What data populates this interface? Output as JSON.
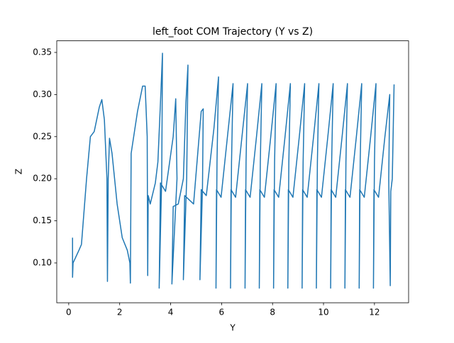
{
  "chart_data": {
    "type": "line",
    "title": "left_foot COM Trajectory (Y vs Z)",
    "x_label": "Y",
    "y_label": "Z",
    "xlim": [
      -0.47,
      13.34
    ],
    "ylim": [
      0.0527,
      0.3638
    ],
    "xticks": [
      0,
      2,
      4,
      6,
      8,
      10,
      12
    ],
    "yticks": [
      {
        "value": 0.1,
        "label": "0.10"
      },
      0.15,
      {
        "value": 0.2,
        "label": "0.20"
      },
      0.25,
      {
        "value": 0.3,
        "label": "0.30"
      },
      0.35
    ],
    "grid": false,
    "series": [
      {
        "color": "#1f77b4",
        "x": [
          0.15,
          0.15,
          0.17,
          0.4,
          0.5,
          0.7,
          0.85,
          1.0,
          1.2,
          1.3,
          1.4,
          1.5,
          1.52,
          1.55,
          1.6,
          1.7,
          1.9,
          2.1,
          2.3,
          2.4,
          2.42,
          2.45,
          2.7,
          2.9,
          3.0,
          3.08,
          3.1,
          3.12,
          3.2,
          3.4,
          3.5,
          3.6,
          3.68,
          3.65,
          3.55,
          3.6,
          3.8,
          4.1,
          4.2,
          4.25,
          4.05,
          4.1,
          4.3,
          4.5,
          4.6,
          4.68,
          4.63,
          4.5,
          4.55,
          4.9,
          5.2,
          5.28,
          5.25,
          5.15,
          5.2,
          5.4,
          5.7,
          5.88,
          5.82,
          5.78,
          5.8,
          5.98,
          6.23,
          6.45,
          6.39,
          6.35,
          6.37,
          6.55,
          6.8,
          7.02,
          6.96,
          6.92,
          6.94,
          7.12,
          7.37,
          7.58,
          7.52,
          7.48,
          7.5,
          7.68,
          7.93,
          8.14,
          8.08,
          8.04,
          8.06,
          8.24,
          8.49,
          8.7,
          8.64,
          8.6,
          8.62,
          8.8,
          9.05,
          9.26,
          9.2,
          9.16,
          9.18,
          9.36,
          9.61,
          9.82,
          9.76,
          9.72,
          9.74,
          9.92,
          10.17,
          10.38,
          10.32,
          10.28,
          10.3,
          10.48,
          10.73,
          10.94,
          10.88,
          10.84,
          10.86,
          11.04,
          11.29,
          11.5,
          11.44,
          11.4,
          11.42,
          11.6,
          11.85,
          12.06,
          12.0,
          11.96,
          11.98,
          12.16,
          12.41,
          12.6,
          12.56,
          12.62,
          12.64,
          12.7,
          12.77
        ],
        "values": [
          0.13,
          0.083,
          0.1,
          0.115,
          0.122,
          0.2,
          0.25,
          0.256,
          0.285,
          0.294,
          0.27,
          0.2,
          0.078,
          0.2,
          0.248,
          0.23,
          0.17,
          0.13,
          0.115,
          0.1,
          0.076,
          0.23,
          0.28,
          0.31,
          0.31,
          0.25,
          0.085,
          0.18,
          0.17,
          0.195,
          0.22,
          0.29,
          0.349,
          0.2,
          0.07,
          0.195,
          0.185,
          0.25,
          0.295,
          0.2,
          0.075,
          0.167,
          0.17,
          0.2,
          0.29,
          0.335,
          0.2,
          0.08,
          0.18,
          0.17,
          0.28,
          0.283,
          0.19,
          0.08,
          0.187,
          0.18,
          0.26,
          0.321,
          0.22,
          0.07,
          0.187,
          0.178,
          0.25,
          0.313,
          0.22,
          0.07,
          0.187,
          0.178,
          0.25,
          0.313,
          0.22,
          0.07,
          0.187,
          0.178,
          0.25,
          0.313,
          0.22,
          0.07,
          0.187,
          0.178,
          0.25,
          0.313,
          0.22,
          0.07,
          0.187,
          0.178,
          0.25,
          0.313,
          0.22,
          0.07,
          0.187,
          0.178,
          0.25,
          0.313,
          0.22,
          0.07,
          0.187,
          0.178,
          0.25,
          0.313,
          0.22,
          0.07,
          0.187,
          0.178,
          0.25,
          0.313,
          0.22,
          0.07,
          0.187,
          0.178,
          0.25,
          0.313,
          0.22,
          0.07,
          0.187,
          0.178,
          0.25,
          0.313,
          0.22,
          0.07,
          0.187,
          0.178,
          0.25,
          0.313,
          0.22,
          0.07,
          0.187,
          0.178,
          0.25,
          0.3,
          0.2,
          0.073,
          0.185,
          0.2,
          0.312
        ]
      }
    ]
  }
}
